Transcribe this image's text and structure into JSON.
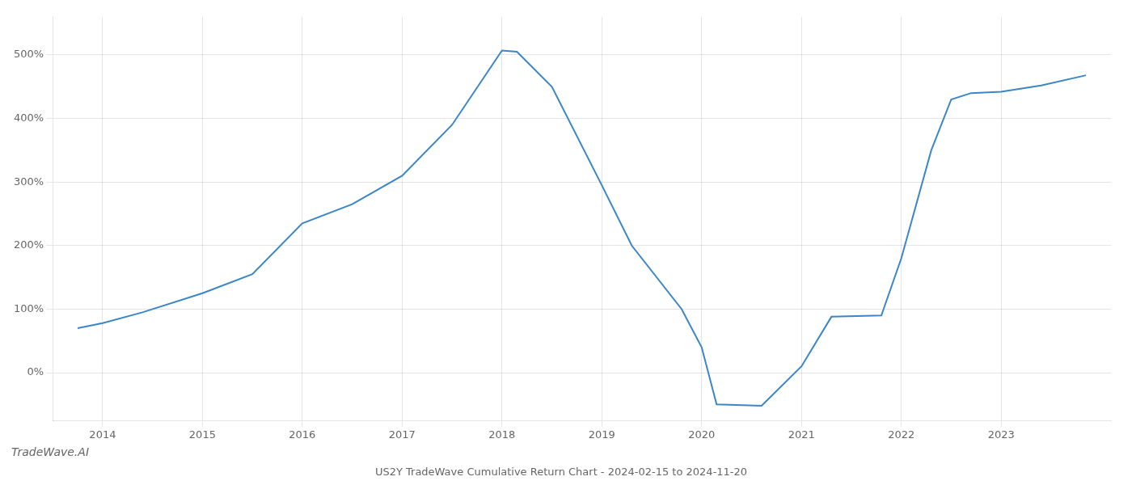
{
  "chart_data": {
    "type": "line",
    "title": "US2Y TradeWave Cumulative Return Chart - 2024-02-15 to 2024-11-20",
    "annotations": [
      "TradeWave.AI"
    ],
    "x": [
      2013.75,
      2014.0,
      2014.4,
      2015.0,
      2015.5,
      2016.0,
      2016.5,
      2017.0,
      2017.5,
      2018.0,
      2018.15,
      2018.5,
      2019.0,
      2019.3,
      2019.8,
      2020.0,
      2020.15,
      2020.6,
      2021.0,
      2021.3,
      2021.8,
      2022.0,
      2022.3,
      2022.5,
      2022.7,
      2023.0,
      2023.4,
      2023.85
    ],
    "values": [
      70,
      78,
      95,
      125,
      155,
      235,
      265,
      310,
      390,
      507,
      505,
      450,
      295,
      200,
      100,
      40,
      -50,
      -52,
      10,
      88,
      90,
      180,
      350,
      430,
      440,
      442,
      452,
      468
    ],
    "color": "#3a86c8",
    "xlim": [
      2013.5,
      2024.1
    ],
    "xticks": [
      2014,
      2015,
      2016,
      2017,
      2018,
      2019,
      2020,
      2021,
      2022,
      2023
    ],
    "ylim": [
      -75,
      560
    ],
    "yticks": [
      {
        "value": 0,
        "label": "0%"
      },
      {
        "value": 100,
        "label": "100%"
      },
      {
        "value": 200,
        "label": "200%"
      },
      {
        "value": 300,
        "label": "300%"
      },
      {
        "value": 400,
        "label": "400%"
      },
      {
        "value": 500,
        "label": "500%"
      }
    ],
    "grid": true
  }
}
